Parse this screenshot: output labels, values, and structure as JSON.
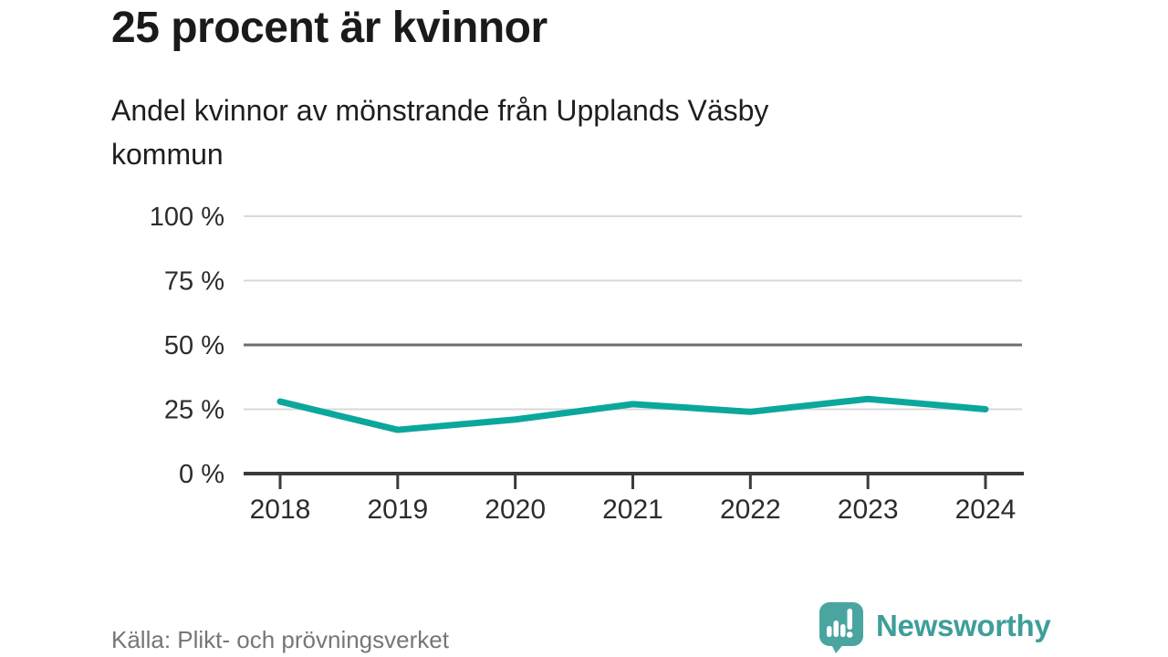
{
  "header": {
    "title": "25 procent är kvinnor",
    "subtitle_lines": [
      "Andel kvinnor av mönstrande från Upplands Väsby",
      "kommun"
    ]
  },
  "chart_data": {
    "type": "line",
    "title": "25 procent är kvinnor",
    "subtitle": "Andel kvinnor av mönstrande från Upplands Väsby kommun",
    "categories": [
      "2018",
      "2019",
      "2020",
      "2021",
      "2022",
      "2023",
      "2024"
    ],
    "values": [
      28,
      17,
      21,
      27,
      24,
      29,
      25
    ],
    "unit": "%",
    "xlabel": "",
    "ylabel": "",
    "ylim": [
      0,
      100
    ],
    "y_ticks": [
      {
        "value": 0,
        "label": "0 %"
      },
      {
        "value": 25,
        "label": "25 %"
      },
      {
        "value": 50,
        "label": "50 %"
      },
      {
        "value": 75,
        "label": "75 %"
      },
      {
        "value": 100,
        "label": "100 %"
      }
    ],
    "grid": true,
    "emphasized_gridline": 50,
    "legend": "none",
    "line_color": "#0ba79c"
  },
  "footer": {
    "source": "Källa: Plikt- och prövningsverket",
    "brand": "Newsworthy"
  },
  "colors": {
    "accent_teal": "#0ba79c",
    "logo_icon_teal": "#4aa5a0",
    "logo_text_teal": "#3f9e99",
    "title_text": "#1a1a1a",
    "source_text": "#767676",
    "gridline_light": "#d9d9d9",
    "gridline_dark": "#6d6d6d",
    "axis": "#3a3a3a"
  }
}
